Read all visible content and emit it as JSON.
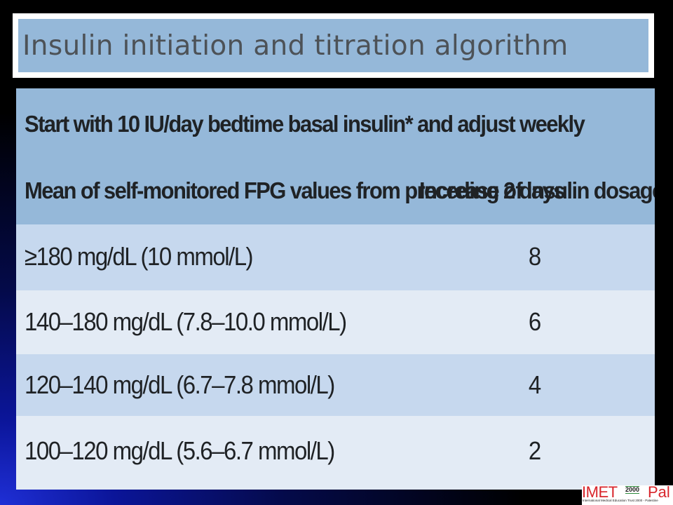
{
  "slide": {
    "title": "Insulin initiation and titration algorithm"
  },
  "table": {
    "start_instruction": "Start with 10 IU/day bedtime basal insulin* and adjust weekly",
    "header_left": "Mean of self-monitored FPG values from preceding 2 days",
    "header_right": "Increase of insulin dosage (IU/day)",
    "rows": [
      {
        "range": "≥180 mg/dL (10 mmol/L)",
        "dose": "8"
      },
      {
        "range": "140–180 mg/dL (7.8–10.0 mmol/L)",
        "dose": "6"
      },
      {
        "range": "120–140 mg/dL (6.7–7.8 mmol/L)",
        "dose": "4"
      },
      {
        "range": "100–120 mg/dL (5.6–6.7 mmol/L)",
        "dose": "2"
      }
    ]
  },
  "logo": {
    "mark": "IMET",
    "year": "2000",
    "suffix": "Pal",
    "tagline": "International Medical Education Trust 2000 - Palestine"
  },
  "colors": {
    "header_fill": "#95b8d9",
    "row_dark": "#c6d8ee",
    "row_light": "#e3ebf5",
    "logo_red": "#d8252b"
  }
}
